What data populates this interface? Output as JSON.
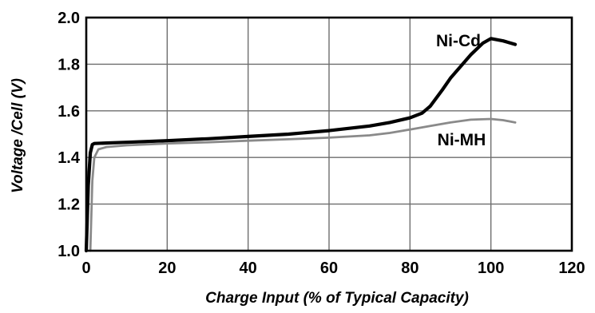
{
  "chart_data": {
    "type": "line",
    "title": "",
    "xlabel": "Charge Input (% of Typical Capacity)",
    "ylabel": "Voltage /Cell (V)",
    "xlim": [
      0,
      120
    ],
    "ylim": [
      1.0,
      2.0
    ],
    "x_ticks": [
      "0",
      "20",
      "40",
      "60",
      "80",
      "100",
      "120"
    ],
    "y_ticks": [
      "1.0",
      "1.2",
      "1.4",
      "1.6",
      "1.8",
      "2.0"
    ],
    "grid": true,
    "legend": "inline labels",
    "series": [
      {
        "name": "Ni-Cd",
        "color": "#000000",
        "x": [
          0,
          0.5,
          1,
          1.5,
          2,
          5,
          10,
          20,
          30,
          40,
          50,
          60,
          70,
          75,
          80,
          83,
          85,
          88,
          90,
          93,
          95,
          98,
          100,
          103,
          106
        ],
        "y": [
          1.0,
          1.28,
          1.42,
          1.455,
          1.46,
          1.462,
          1.465,
          1.472,
          1.48,
          1.49,
          1.5,
          1.515,
          1.535,
          1.55,
          1.57,
          1.59,
          1.62,
          1.69,
          1.74,
          1.8,
          1.84,
          1.89,
          1.91,
          1.9,
          1.885
        ]
      },
      {
        "name": "Ni-MH",
        "color": "#8a8a8a",
        "x": [
          1,
          1.5,
          2,
          3,
          5,
          10,
          20,
          30,
          40,
          50,
          60,
          70,
          75,
          80,
          85,
          90,
          95,
          100,
          103,
          106
        ],
        "y": [
          1.0,
          1.3,
          1.4,
          1.435,
          1.445,
          1.452,
          1.46,
          1.465,
          1.472,
          1.478,
          1.485,
          1.495,
          1.505,
          1.52,
          1.535,
          1.55,
          1.562,
          1.565,
          1.56,
          1.55
        ]
      }
    ]
  }
}
